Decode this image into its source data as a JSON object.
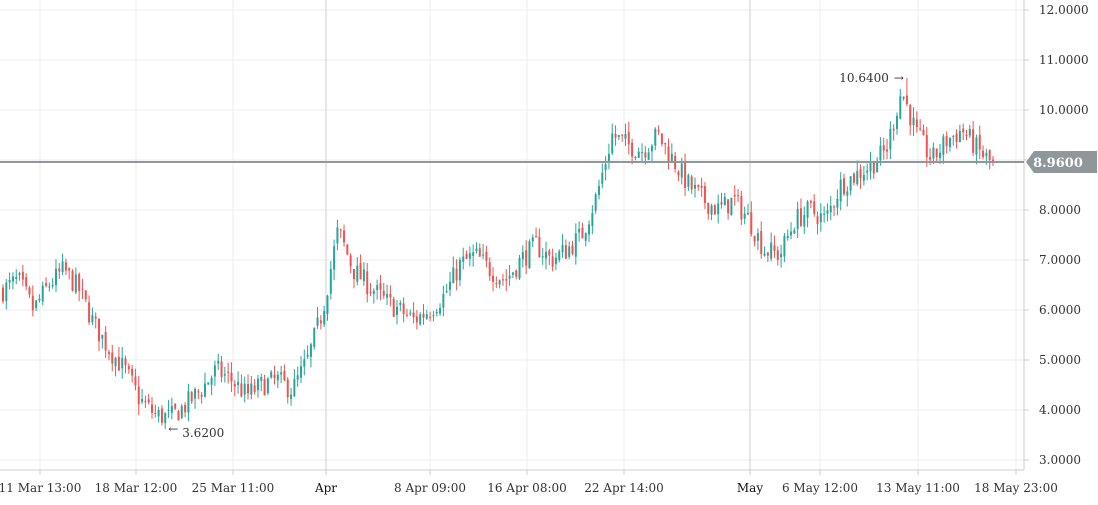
{
  "chart_data": {
    "type": "candlestick",
    "title": "",
    "xlabel": "",
    "ylabel": "",
    "ylim": [
      2.8,
      12.2
    ],
    "y_ticks": [
      "3.0000",
      "4.0000",
      "5.0000",
      "6.0000",
      "7.0000",
      "8.0000",
      "9.0000",
      "10.0000",
      "11.0000",
      "12.0000"
    ],
    "x_ticks": [
      {
        "label": "11 Mar 13:00",
        "major": false
      },
      {
        "label": "18 Mar 12:00",
        "major": false
      },
      {
        "label": "25 Mar 11:00",
        "major": false
      },
      {
        "label": "Apr",
        "major": true
      },
      {
        "label": "8 Apr 09:00",
        "major": false
      },
      {
        "label": "16 Apr 08:00",
        "major": false
      },
      {
        "label": "22 Apr 14:00",
        "major": false
      },
      {
        "label": "May",
        "major": true
      },
      {
        "label": "6 May 12:00",
        "major": false
      },
      {
        "label": "13 May 11:00",
        "major": false
      },
      {
        "label": "18 May 23:00",
        "major": false
      }
    ],
    "grid": true,
    "colors": {
      "up": "#26a69a",
      "down": "#ef5350",
      "price_line": "#90979c",
      "grid": "#eeeeee",
      "axis": "#cccccc"
    },
    "last_price": {
      "value": 8.96,
      "label": "8.9600"
    },
    "annotations": [
      {
        "text": "10.6400",
        "value": 10.64,
        "arrow": "→"
      },
      {
        "text": "3.6200",
        "value": 3.62,
        "arrow": "←"
      }
    ],
    "price_anchors": [
      6.4,
      6.6,
      6.0,
      6.5,
      6.8,
      6.4,
      5.7,
      5.2,
      4.8,
      4.2,
      3.9,
      3.85,
      4.1,
      4.4,
      4.8,
      4.6,
      4.3,
      4.5,
      4.6,
      4.4,
      5.0,
      6.0,
      7.6,
      6.8,
      6.5,
      6.2,
      6.0,
      5.8,
      6.0,
      6.3,
      6.9,
      7.1,
      6.8,
      6.6,
      7.0,
      7.3,
      7.0,
      7.2,
      7.5,
      8.3,
      9.5,
      9.3,
      9.2,
      9.5,
      9.0,
      8.5,
      8.2,
      8.0,
      8.2,
      7.8,
      7.2,
      7.1,
      7.8,
      8.0,
      7.8,
      8.5,
      8.7,
      8.9,
      9.2,
      10.4,
      9.5,
      9.0,
      9.4,
      9.6,
      9.2,
      8.9
    ],
    "low": 3.62,
    "high": 10.64
  }
}
